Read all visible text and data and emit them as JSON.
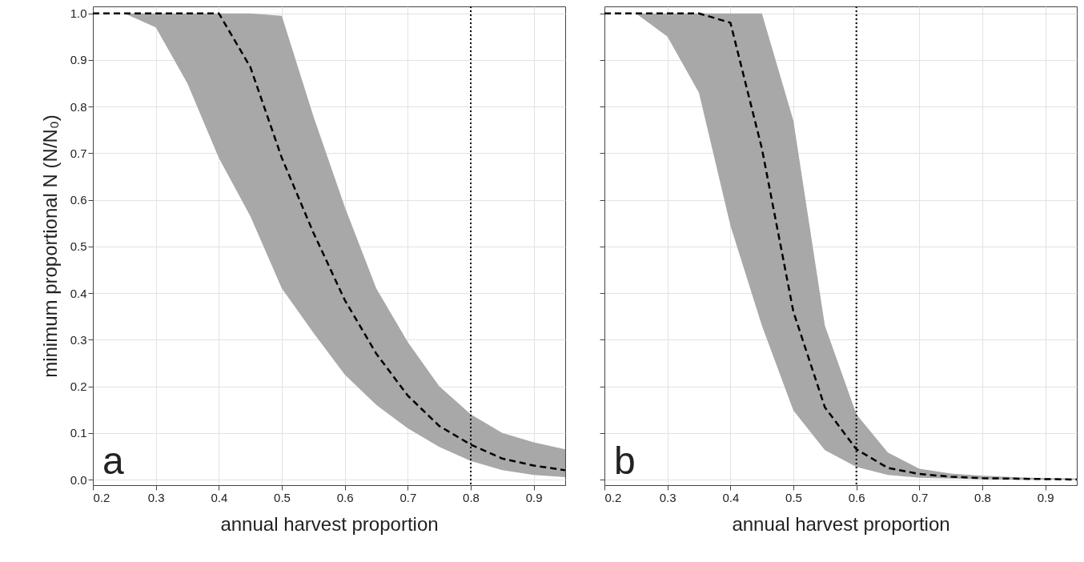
{
  "chart_data": [
    {
      "type": "line",
      "xlabel": "annual harvest proportion",
      "ylabel": "minimum proportional N (N/N₀)",
      "x": [
        0.2,
        0.25,
        0.3,
        0.35,
        0.4,
        0.45,
        0.5,
        0.55,
        0.6,
        0.65,
        0.7,
        0.75,
        0.8,
        0.85,
        0.9,
        0.95
      ],
      "series": [
        {
          "color": "#000000",
          "line_style": "dashed",
          "values": [
            1,
            1,
            1,
            1,
            1,
            0.885,
            0.69,
            0.53,
            0.385,
            0.27,
            0.18,
            0.115,
            0.075,
            0.045,
            0.03,
            0.02
          ],
          "lower": [
            1,
            1,
            0.97,
            0.85,
            0.69,
            0.565,
            0.41,
            0.315,
            0.225,
            0.16,
            0.11,
            0.07,
            0.04,
            0.02,
            0.01,
            0.005
          ],
          "upper": [
            1,
            1,
            1,
            1,
            1,
            1,
            0.995,
            0.78,
            0.585,
            0.41,
            0.295,
            0.2,
            0.14,
            0.1,
            0.08,
            0.065
          ]
        }
      ],
      "xlim": [
        0.2,
        0.95
      ],
      "xticks": [
        0.2,
        0.3,
        0.4,
        0.5,
        0.6,
        0.7,
        0.8,
        0.9
      ],
      "ylim": [
        -0.012,
        1.015
      ],
      "yticks": [
        {
          "value": 0,
          "label": "0.0"
        },
        0.1,
        0.2,
        0.3,
        0.4,
        0.5,
        0.6,
        0.7,
        0.8,
        0.9,
        {
          "value": 1,
          "label": "1.0"
        }
      ],
      "grid": true,
      "ref_lines": [
        {
          "axis": "x",
          "value": 0.8,
          "line_style": "dotted",
          "color": "#000000"
        }
      ],
      "annotations": [
        "a"
      ]
    },
    {
      "type": "line",
      "xlabel": "annual harvest proportion",
      "x": [
        0.2,
        0.25,
        0.3,
        0.35,
        0.4,
        0.45,
        0.5,
        0.55,
        0.6,
        0.65,
        0.7,
        0.75,
        0.8,
        0.85,
        0.9,
        0.95
      ],
      "series": [
        {
          "color": "#000000",
          "line_style": "dashed",
          "values": [
            1,
            1,
            1,
            1,
            0.98,
            0.71,
            0.36,
            0.155,
            0.065,
            0.025,
            0.012,
            0.006,
            0.003,
            0.002,
            0.001,
            0
          ],
          "lower": [
            1,
            1,
            0.95,
            0.83,
            0.545,
            0.33,
            0.148,
            0.063,
            0.027,
            0.01,
            0.004,
            0.002,
            0.001,
            0,
            0,
            0
          ],
          "upper": [
            1,
            1,
            1,
            1,
            1,
            1,
            0.77,
            0.33,
            0.14,
            0.058,
            0.023,
            0.013,
            0.008,
            0.005,
            0.003,
            0.002
          ]
        }
      ],
      "xlim": [
        0.2,
        0.95
      ],
      "xticks": [
        0.2,
        0.3,
        0.4,
        0.5,
        0.6,
        0.7,
        0.8,
        0.9
      ],
      "ylim": [
        -0.012,
        1.015
      ],
      "yticks": [
        0,
        0.1,
        0.2,
        0.3,
        0.4,
        0.5,
        0.6,
        0.7,
        0.8,
        0.9,
        1
      ],
      "grid": true,
      "tick_labels": "x",
      "ref_lines": [
        {
          "axis": "x",
          "value": 0.6,
          "line_style": "dotted",
          "color": "#000000"
        }
      ],
      "annotations": [
        "b"
      ]
    }
  ]
}
